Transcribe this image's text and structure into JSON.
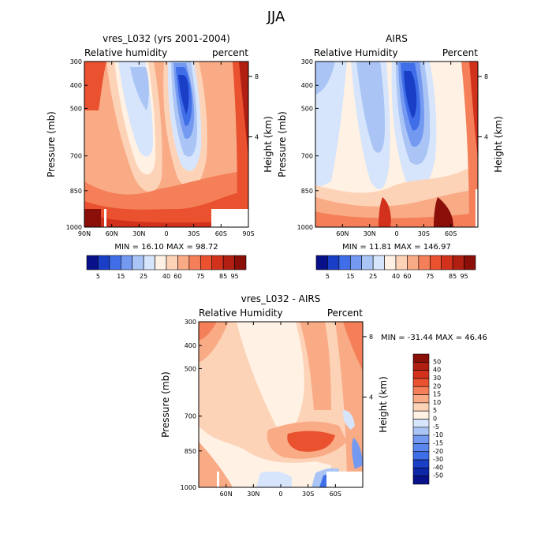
{
  "figure_title": "JJA",
  "colors": {
    "rh_scale": [
      "#08108a",
      "#1a3fc6",
      "#3f6ee8",
      "#7499f0",
      "#a9c4f5",
      "#d6e5fb",
      "#fff1e3",
      "#fdd3b8",
      "#f9ab86",
      "#f47f58",
      "#e9512f",
      "#d2321c",
      "#b01f12",
      "#8a0f08"
    ],
    "diff_scale": [
      "#08108a",
      "#1a3fc6",
      "#3f6ee8",
      "#7499f0",
      "#a9c4f5",
      "#d6e5fb",
      "#fff1e3",
      "#fdd3b8",
      "#f9ab86",
      "#f47f58",
      "#e9512f",
      "#d2321c",
      "#b01f12",
      "#8a0f08"
    ]
  },
  "chart_data": [
    {
      "type": "heatmap",
      "title": "vres_L032 (yrs 2001-2004)",
      "left_label": "Relative humidity",
      "right_label": "percent",
      "ylabel": "Pressure (mb)",
      "ylabel_right": "Height (km)",
      "x_ticks": [
        "90N",
        "60N",
        "30N",
        "0",
        "30S",
        "60S",
        "90S"
      ],
      "y_ticks": [
        "300",
        "400",
        "500",
        "700",
        "850",
        "1000"
      ],
      "y_right_ticks": [
        "8",
        "4"
      ],
      "stats": "MIN =  16.10   MAX =  98.72",
      "colorbar_labels": [
        "5",
        "15",
        "25",
        "40",
        "60",
        "75",
        "85",
        "95"
      ],
      "min": 16.1,
      "max": 98.72
    },
    {
      "type": "heatmap",
      "title": "AIRS",
      "left_label": "Relative Humidity",
      "right_label": "Percent",
      "ylabel": "Pressure (mb)",
      "ylabel_right": "Height (km)",
      "x_ticks": [
        "60N",
        "30N",
        "0",
        "30S",
        "60S"
      ],
      "y_ticks": [
        "300",
        "400",
        "500",
        "700",
        "850",
        "1000"
      ],
      "y_right_ticks": [
        "8",
        "4"
      ],
      "stats": "MIN =  11.81   MAX =  146.97",
      "colorbar_labels": [
        "5",
        "15",
        "25",
        "40",
        "60",
        "75",
        "85",
        "95"
      ],
      "min": 11.81,
      "max": 146.97
    },
    {
      "type": "heatmap",
      "title": "vres_L032 - AIRS",
      "left_label": "Relative Humidity",
      "right_label": "Percent",
      "ylabel": "Pressure (mb)",
      "ylabel_right": "Height (km)",
      "x_ticks": [
        "60N",
        "30N",
        "0",
        "30S",
        "60S"
      ],
      "y_ticks": [
        "300",
        "400",
        "500",
        "700",
        "850",
        "1000"
      ],
      "y_right_ticks": [
        "8",
        "4"
      ],
      "stats": "MIN = -31.44  MAX =  46.46",
      "colorbar_labels": [
        "50",
        "40",
        "30",
        "20",
        "15",
        "10",
        "5",
        "0",
        "-5",
        "-10",
        "-15",
        "-20",
        "-30",
        "-40",
        "-50"
      ],
      "min": -31.44,
      "max": 46.46
    }
  ]
}
